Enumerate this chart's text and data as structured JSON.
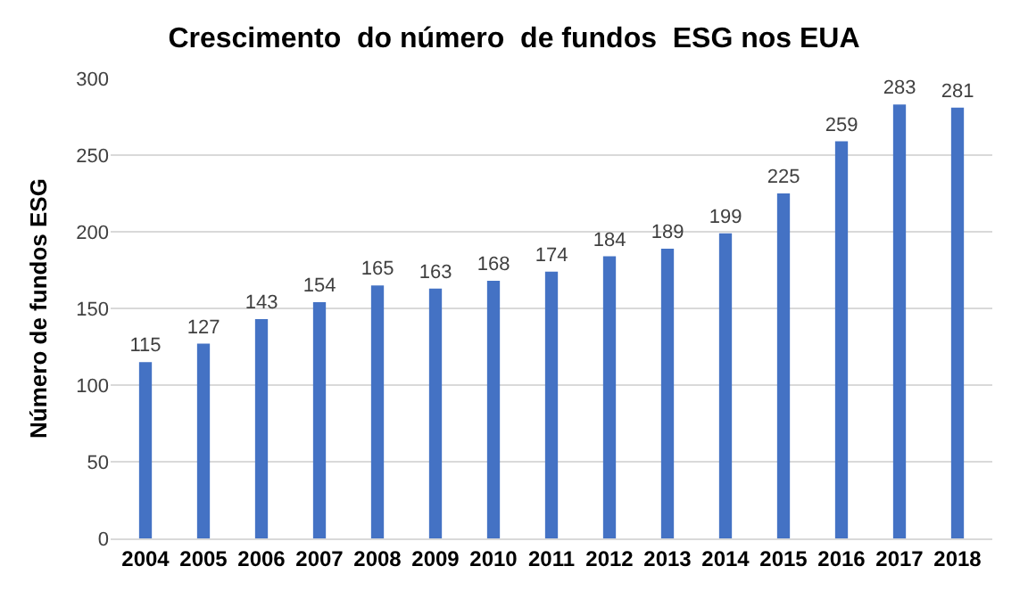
{
  "chart_data": {
    "type": "bar",
    "title": "Crescimento  do número  de fundos  ESG nos EUA",
    "ylabel": "Número de fundos ESG",
    "categories": [
      "2004",
      "2005",
      "2006",
      "2007",
      "2008",
      "2009",
      "2010",
      "2011",
      "2012",
      "2013",
      "2014",
      "2015",
      "2016",
      "2017",
      "2018"
    ],
    "values": [
      115,
      127,
      143,
      154,
      165,
      163,
      168,
      174,
      184,
      189,
      199,
      225,
      259,
      283,
      281
    ],
    "color": "#4472c4",
    "ylim": [
      0,
      300
    ],
    "yticks": [
      0,
      50,
      100,
      150,
      200,
      250,
      300
    ],
    "grid": "y",
    "data_labels": true
  }
}
